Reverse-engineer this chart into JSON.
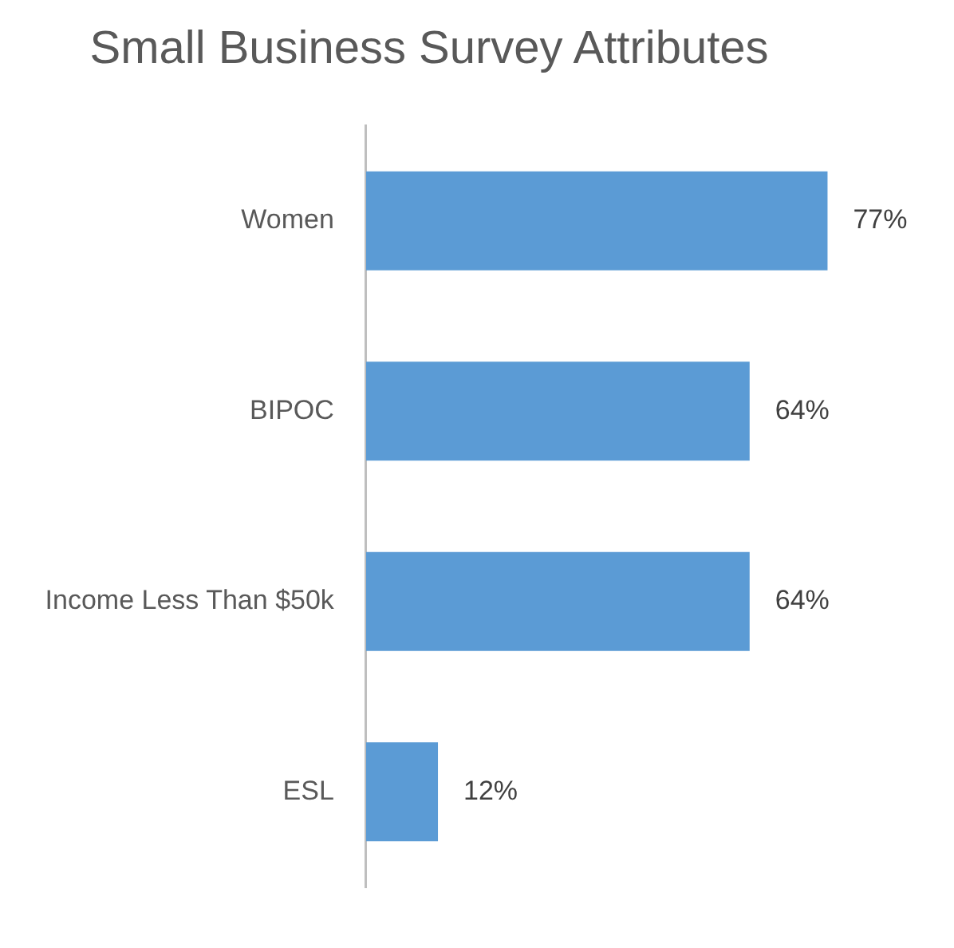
{
  "chart_data": {
    "type": "bar",
    "orientation": "horizontal",
    "title": "Small Business Survey Attributes",
    "categories": [
      "Women",
      "BIPOC",
      "Income Less Than $50k",
      "ESL"
    ],
    "values": [
      77,
      64,
      64,
      12
    ],
    "color": "#5b9bd5",
    "value_labels": [
      "77%",
      "64%",
      "64%",
      "12%"
    ]
  }
}
